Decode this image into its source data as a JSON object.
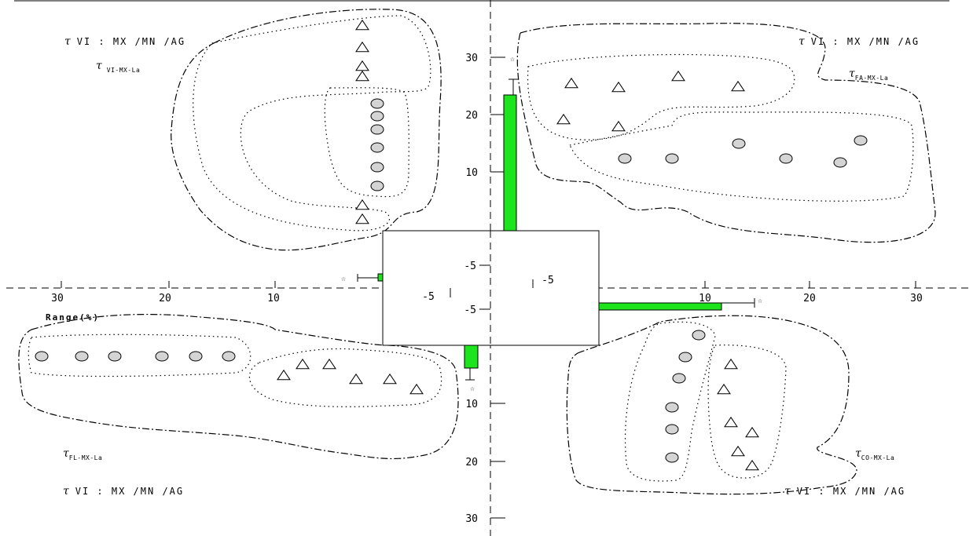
{
  "chart_data": {
    "type": "bar",
    "description_mode": "four-quadrant range plot",
    "range_label": "Range(%)",
    "axis_ticks": {
      "x_left": [
        "30",
        "20",
        "10"
      ],
      "x_right": [
        "10",
        "20",
        "30"
      ],
      "y_top": [
        "30",
        "20",
        "10"
      ],
      "y_bottom": [
        "10",
        "20",
        "30"
      ],
      "inner": [
        "-5",
        "-5",
        "-5",
        "-5"
      ]
    },
    "quadrants": [
      {
        "id": "VI",
        "formula_label": "VI : MX /MN /AG",
        "tau_label": "VI-MX-La",
        "position": "top-left",
        "bar_value": -0.3
      },
      {
        "id": "FA",
        "formula_label": "VI : MX /MN /AG",
        "tau_label": "FA-MX-La",
        "position": "top-right",
        "bar_value": 23.5
      },
      {
        "id": "FL",
        "formula_label": "VI : MX /MN /AG",
        "tau_label": "FL-MX-La",
        "position": "bottom-left",
        "bar_value": -4.0
      },
      {
        "id": "CO",
        "formula_label": "VI : MX /MN /AG",
        "tau_label": "CO-MX-La",
        "position": "bottom-right",
        "bar_value": 11.5
      }
    ],
    "colors": {
      "bar": "#1ee41e",
      "marker_fill": "#d4d4d4"
    }
  }
}
